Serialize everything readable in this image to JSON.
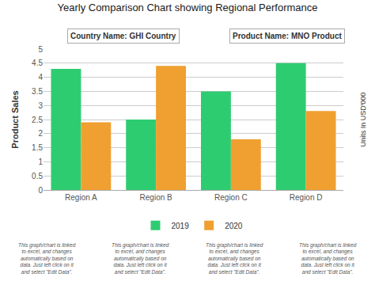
{
  "chart_data": {
    "type": "bar",
    "title": "Yearly Comparison Chart showing Regional Performance",
    "categories": [
      "Region A",
      "Region B",
      "Region C",
      "Region D"
    ],
    "series": [
      {
        "name": "2019",
        "color": "#2ECC71",
        "values": [
          4.3,
          2.5,
          3.5,
          4.5
        ]
      },
      {
        "name": "2020",
        "color": "#F0A030",
        "values": [
          2.4,
          4.4,
          1.8,
          2.8
        ]
      }
    ],
    "ylabel": "Product Sales",
    "y2label": "Units In USD'000",
    "ylim": [
      0,
      5
    ],
    "yticks": [
      0,
      0.5,
      1,
      1.5,
      2,
      2.5,
      3,
      3.5,
      4,
      4.5,
      5
    ],
    "grid": true,
    "legend": "bottom",
    "annotations": [
      "Country Name: GHI Country",
      "Product Name: MNO Product"
    ],
    "footer": [
      "This graph/chart is linked\nto excel, and changes\nautomatically based on\ndata. Just left click on it\nand select \"Edit Data\".",
      "This graph/chart is linked\nto excel, and changes\nautomatically based on\ndata. Just left click on it\nand select \"Edit Data\".",
      "This graph/chart is linked\nto excel, and changes\nautomatically based on\ndata. Just left click on it\nand select \"Edit Data\".",
      "This graph/chart is linked\nto excel, and changes\nautomatically based on\ndata. Just left click on it\nand select \"Edit Data\"."
    ]
  }
}
